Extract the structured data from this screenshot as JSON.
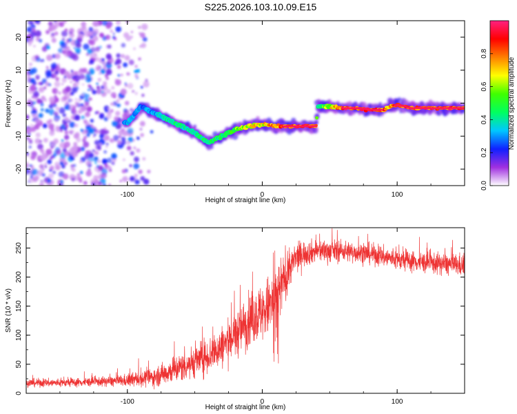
{
  "title": "S225.2026.103.10.09.E15",
  "chart_data": [
    {
      "type": "heatmap",
      "name": "spectrogram",
      "xlabel": "Height of straight line (km)",
      "ylabel": "Frequency (Hz)",
      "xlim": [
        -175,
        150
      ],
      "ylim": [
        -25,
        25
      ],
      "xticks": [
        -100,
        0,
        100
      ],
      "yticks": [
        -20,
        -10,
        0,
        10,
        20
      ],
      "colorbar": {
        "label": "Normalized spectral amplitude",
        "range": [
          0,
          1
        ],
        "ticks": [
          0.0,
          0.2,
          0.4,
          0.6,
          0.8
        ],
        "tick_labels": [
          "0.0",
          "0.2",
          "0.4",
          "0.6",
          "0.8"
        ],
        "stops": [
          "#ffffff",
          "#a030e0",
          "#1020ff",
          "#00c8ff",
          "#00ff60",
          "#40ff00",
          "#ffff00",
          "#ff8000",
          "#ff0000",
          "#ff2080"
        ]
      },
      "ridge": {
        "x": [
          -100,
          -90,
          -80,
          -70,
          -60,
          -50,
          -40,
          -30,
          -20,
          -10,
          0,
          10,
          20,
          30,
          40,
          41,
          50,
          60,
          70,
          80,
          90,
          95,
          100,
          110,
          120,
          130,
          140,
          150
        ],
        "freq": [
          -6,
          -1,
          -3,
          -5,
          -7,
          -9,
          -12,
          -10,
          -8,
          -7,
          -6.5,
          -7,
          -7,
          -7,
          -7,
          -1,
          -1,
          -1.5,
          -1.5,
          -2,
          -2,
          -1,
          -0.5,
          -1.5,
          -1.5,
          -1.5,
          -1.5,
          -1.5
        ],
        "amp": [
          0.35,
          0.3,
          0.35,
          0.45,
          0.45,
          0.45,
          0.5,
          0.5,
          0.6,
          0.75,
          0.75,
          0.85,
          0.95,
          0.95,
          0.95,
          0.45,
          0.7,
          0.95,
          0.95,
          0.95,
          0.9,
          0.8,
          0.95,
          0.95,
          0.95,
          0.95,
          0.95,
          0.95
        ]
      },
      "noise_region": [
        -175,
        -95
      ]
    },
    {
      "type": "line",
      "name": "snr",
      "xlabel": "Height of straight line (km)",
      "ylabel": "SNR (10 * v/v)",
      "xlim": [
        -175,
        150
      ],
      "ylim": [
        0,
        285
      ],
      "xticks": [
        -100,
        0,
        100
      ],
      "yticks": [
        0,
        50,
        100,
        150,
        200,
        250
      ],
      "color": "#ee3333",
      "trend": {
        "x": [
          -175,
          -150,
          -120,
          -100,
          -80,
          -60,
          -40,
          -30,
          -20,
          -10,
          0,
          5,
          10,
          15,
          20,
          25,
          30,
          40,
          50,
          60,
          80,
          100,
          120,
          150
        ],
        "mean": [
          18,
          18,
          20,
          22,
          28,
          45,
          65,
          80,
          100,
          125,
          140,
          150,
          160,
          190,
          215,
          232,
          240,
          245,
          245,
          245,
          240,
          230,
          225,
          220
        ],
        "spread": [
          8,
          8,
          9,
          12,
          18,
          28,
          35,
          40,
          45,
          50,
          55,
          60,
          65,
          55,
          35,
          30,
          25,
          22,
          22,
          20,
          20,
          20,
          20,
          22
        ]
      }
    }
  ]
}
